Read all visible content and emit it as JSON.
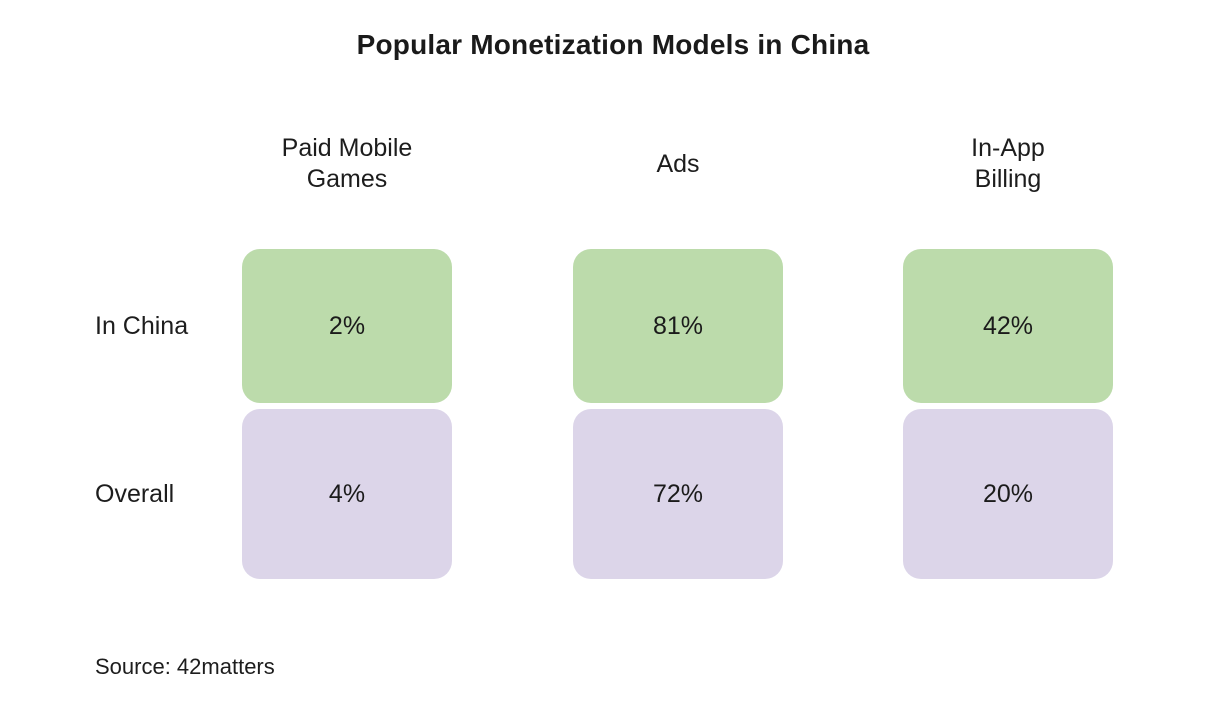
{
  "title": "Popular Monetization Models in China",
  "columns": [
    {
      "label": "Paid Mobile\nGames"
    },
    {
      "label": "Ads"
    },
    {
      "label": "In-App\nBilling"
    }
  ],
  "rows": [
    {
      "label": "In China",
      "color": "#bcdbab",
      "cells": [
        "2%",
        "81%",
        "42%"
      ]
    },
    {
      "label": "Overall",
      "color": "#dcd5e9",
      "cells": [
        "4%",
        "72%",
        "20%"
      ]
    }
  ],
  "source": "Source: 42matters",
  "colors": {
    "background": "#ffffff",
    "in_china_cell": "#bcdbab",
    "overall_cell": "#dcd5e9",
    "text": "#1d1d1d"
  },
  "chart_data": {
    "type": "table",
    "title": "Popular Monetization Models in China",
    "categories": [
      "Paid Mobile Games",
      "Ads",
      "In-App Billing"
    ],
    "series": [
      {
        "name": "In China",
        "values": [
          2,
          81,
          42
        ]
      },
      {
        "name": "Overall",
        "values": [
          4,
          72,
          20
        ]
      }
    ],
    "unit": "%",
    "annotations": [
      "Source: 42matters"
    ],
    "layout": "matrix of rounded value tiles; row 'In China' green, row 'Overall' lavender"
  }
}
